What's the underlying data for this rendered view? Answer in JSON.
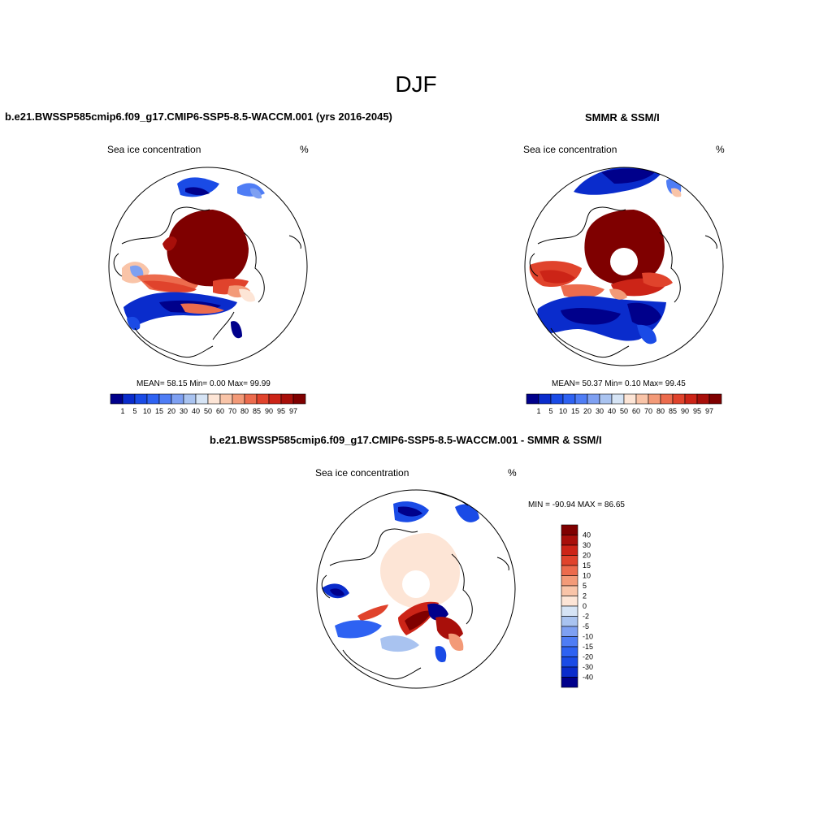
{
  "title": "DJF",
  "panels": {
    "model": {
      "header": "b.e21.BWSSP585cmip6.f09_g17.CMIP6-SSP5-8.5-WACCM.001 (yrs 2016-2045)",
      "variable_label": "Sea ice concentration",
      "units_label": "%",
      "stats": "MEAN=  58.15  Min=   0.00  Max=  99.99"
    },
    "obs": {
      "header": "SMMR & SSM/I",
      "variable_label": "Sea ice concentration",
      "units_label": "%",
      "stats": "MEAN=  50.37  Min=   0.10  Max=  99.45"
    },
    "diff": {
      "header": "b.e21.BWSSP585cmip6.f09_g17.CMIP6-SSP5-8.5-WACCM.001 - SMMR & SSM/I",
      "variable_label": "Sea ice concentration",
      "units_label": "%",
      "stats": "MIN = -90.94 MAX =  86.65"
    }
  },
  "chart_data": [
    {
      "type": "heatmap",
      "projection": "north polar stereographic",
      "title": "b.e21.BWSSP585cmip6.f09_g17.CMIP6-SSP5-8.5-WACCM.001 (yrs 2016-2045)",
      "variable": "Sea ice concentration",
      "units": "%",
      "mean": 58.15,
      "min": 0.0,
      "max": 99.99,
      "levels": [
        1,
        5,
        10,
        15,
        20,
        30,
        40,
        50,
        60,
        70,
        80,
        85,
        90,
        95,
        97
      ],
      "colors": [
        "#00008b",
        "#0a2ccc",
        "#1a4be6",
        "#2e62f2",
        "#4f7df5",
        "#7ea0f2",
        "#a9c3f0",
        "#d6e4f5",
        "#fde5d6",
        "#f9c4a8",
        "#f39a78",
        "#ec6b4d",
        "#e0432c",
        "#cc2417",
        "#a80f0a",
        "#7f0000"
      ]
    },
    {
      "type": "heatmap",
      "projection": "north polar stereographic",
      "title": "SMMR & SSM/I",
      "variable": "Sea ice concentration",
      "units": "%",
      "mean": 50.37,
      "min": 0.1,
      "max": 99.45,
      "levels": [
        1,
        5,
        10,
        15,
        20,
        30,
        40,
        50,
        60,
        70,
        80,
        85,
        90,
        95,
        97
      ],
      "colors": [
        "#00008b",
        "#0a2ccc",
        "#1a4be6",
        "#2e62f2",
        "#4f7df5",
        "#7ea0f2",
        "#a9c3f0",
        "#d6e4f5",
        "#fde5d6",
        "#f9c4a8",
        "#f39a78",
        "#ec6b4d",
        "#e0432c",
        "#cc2417",
        "#a80f0a",
        "#7f0000"
      ]
    },
    {
      "type": "heatmap",
      "projection": "north polar stereographic",
      "title": "b.e21.BWSSP585cmip6.f09_g17.CMIP6-SSP5-8.5-WACCM.001 - SMMR & SSM/I",
      "variable": "Sea ice concentration",
      "units": "%",
      "min": -90.94,
      "max": 86.65,
      "levels": [
        40,
        30,
        20,
        15,
        10,
        5,
        2,
        0,
        -2,
        -5,
        -10,
        -15,
        -20,
        -30,
        -40
      ],
      "colors": [
        "#7f0000",
        "#a80f0a",
        "#cc2417",
        "#e0432c",
        "#ec6b4d",
        "#f39a78",
        "#f9c4a8",
        "#fde5d6",
        "#d6e4f5",
        "#a9c3f0",
        "#7ea0f2",
        "#4f7df5",
        "#2e62f2",
        "#1a4be6",
        "#0a2ccc",
        "#00008b"
      ]
    }
  ]
}
